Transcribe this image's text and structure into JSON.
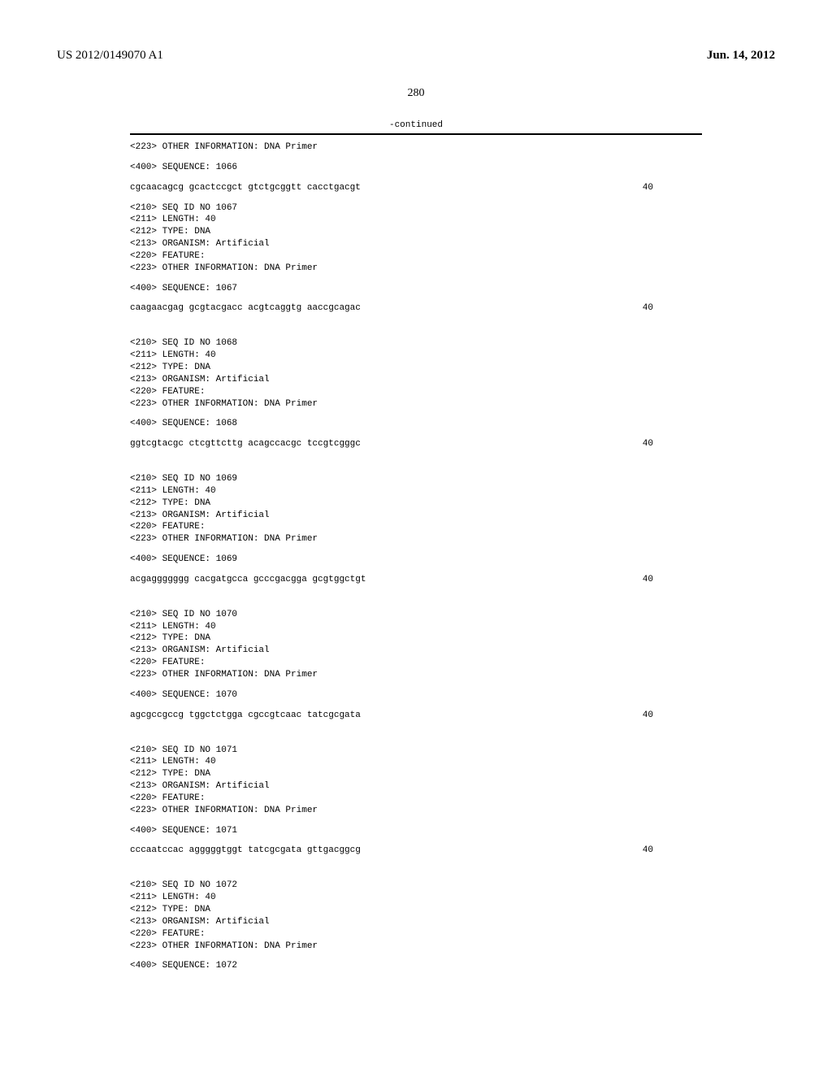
{
  "header": {
    "pub_number": "US 2012/0149070 A1",
    "pub_date": "Jun. 14, 2012"
  },
  "page_number": "280",
  "continued_label": "-continued",
  "first_entry": {
    "other_info": "<223> OTHER INFORMATION: DNA Primer",
    "seq_header": "<400> SEQUENCE: 1066",
    "sequence": "cgcaacagcg gcactccgct gtctgcggtt cacctgacgt",
    "seq_len": "40"
  },
  "entries": [
    {
      "seq_id": "<210> SEQ ID NO 1067",
      "length": "<211> LENGTH: 40",
      "type": "<212> TYPE: DNA",
      "organism": "<213> ORGANISM: Artificial",
      "feature": "<220> FEATURE:",
      "other_info": "<223> OTHER INFORMATION: DNA Primer",
      "seq_header": "<400> SEQUENCE: 1067",
      "sequence": "caagaacgag gcgtacgacc acgtcaggtg aaccgcagac",
      "seq_len": "40"
    },
    {
      "seq_id": "<210> SEQ ID NO 1068",
      "length": "<211> LENGTH: 40",
      "type": "<212> TYPE: DNA",
      "organism": "<213> ORGANISM: Artificial",
      "feature": "<220> FEATURE:",
      "other_info": "<223> OTHER INFORMATION: DNA Primer",
      "seq_header": "<400> SEQUENCE: 1068",
      "sequence": "ggtcgtacgc ctcgttcttg acagccacgc tccgtcgggc",
      "seq_len": "40"
    },
    {
      "seq_id": "<210> SEQ ID NO 1069",
      "length": "<211> LENGTH: 40",
      "type": "<212> TYPE: DNA",
      "organism": "<213> ORGANISM: Artificial",
      "feature": "<220> FEATURE:",
      "other_info": "<223> OTHER INFORMATION: DNA Primer",
      "seq_header": "<400> SEQUENCE: 1069",
      "sequence": "acgaggggggg cacgatgcca gcccgacgga gcgtggctgt",
      "seq_len": "40"
    },
    {
      "seq_id": "<210> SEQ ID NO 1070",
      "length": "<211> LENGTH: 40",
      "type": "<212> TYPE: DNA",
      "organism": "<213> ORGANISM: Artificial",
      "feature": "<220> FEATURE:",
      "other_info": "<223> OTHER INFORMATION: DNA Primer",
      "seq_header": "<400> SEQUENCE: 1070",
      "sequence": "agcgccgccg tggctctgga cgccgtcaac tatcgcgata",
      "seq_len": "40"
    },
    {
      "seq_id": "<210> SEQ ID NO 1071",
      "length": "<211> LENGTH: 40",
      "type": "<212> TYPE: DNA",
      "organism": "<213> ORGANISM: Artificial",
      "feature": "<220> FEATURE:",
      "other_info": "<223> OTHER INFORMATION: DNA Primer",
      "seq_header": "<400> SEQUENCE: 1071",
      "sequence": "cccaatccac agggggtggt tatcgcgata gttgacggcg",
      "seq_len": "40"
    },
    {
      "seq_id": "<210> SEQ ID NO 1072",
      "length": "<211> LENGTH: 40",
      "type": "<212> TYPE: DNA",
      "organism": "<213> ORGANISM: Artificial",
      "feature": "<220> FEATURE:",
      "other_info": "<223> OTHER INFORMATION: DNA Primer",
      "seq_header": "<400> SEQUENCE: 1072",
      "sequence": "",
      "seq_len": ""
    }
  ]
}
